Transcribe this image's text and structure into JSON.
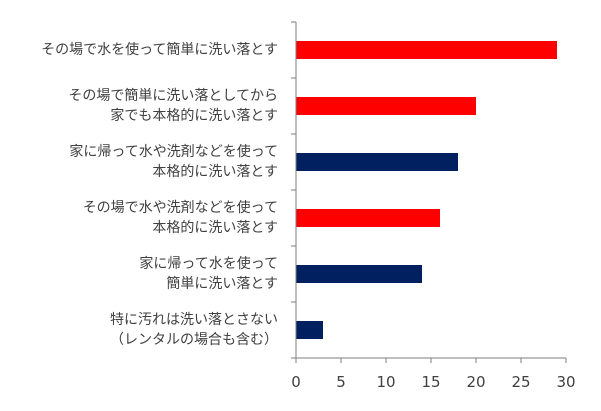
{
  "chart_data": {
    "type": "bar",
    "orientation": "horizontal",
    "categories": [
      [
        "その場で水を使って簡単に洗い落とす"
      ],
      [
        "その場で簡単に洗い落としてから",
        "家でも本格的に洗い落とす"
      ],
      [
        "家に帰って水や洗剤などを使って",
        "本格的に洗い落とす"
      ],
      [
        "その場で水や洗剤などを使って",
        "本格的に洗い落とす"
      ],
      [
        "家に帰って水を使って",
        "簡単に洗い落とす"
      ],
      [
        "特に汚れは洗い落とさない",
        "（レンタルの場合も含む）"
      ]
    ],
    "values": [
      29,
      20,
      18,
      16,
      14,
      3
    ],
    "bar_colors": [
      "#ff0000",
      "#ff0000",
      "#002060",
      "#ff0000",
      "#002060",
      "#002060"
    ],
    "xlim": [
      0,
      30
    ],
    "xticks": [
      0,
      5,
      10,
      15,
      20,
      25,
      30
    ],
    "grid": false,
    "title": "",
    "xlabel": "",
    "ylabel": ""
  }
}
